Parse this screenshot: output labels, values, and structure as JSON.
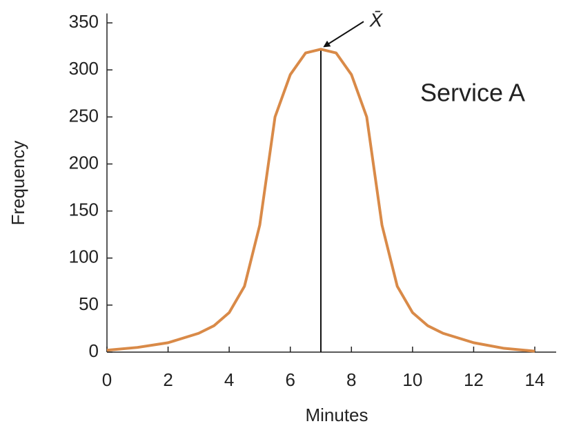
{
  "chart_data": {
    "type": "line",
    "annotation": "X̄",
    "label": "Service A",
    "x_label": "Minutes",
    "y_label": "Frequency",
    "series": [
      {
        "color": "#d98a48",
        "x": [
          0,
          1,
          2,
          3,
          3.5,
          4,
          4.5,
          5,
          5.5,
          6,
          6.5,
          7,
          7.5,
          8,
          8.5,
          9,
          9.5,
          10,
          10.5,
          11,
          12,
          13,
          14
        ],
        "values": [
          2,
          5,
          10,
          20,
          28,
          42,
          70,
          135,
          250,
          295,
          318,
          322,
          318,
          295,
          250,
          135,
          70,
          42,
          28,
          20,
          10,
          4,
          1
        ]
      }
    ],
    "xlim": [
      0,
      14.7
    ],
    "ylim": [
      0,
      360
    ],
    "xticks": [
      0,
      2,
      4,
      6,
      8,
      10,
      12,
      14
    ],
    "yticks": [
      0,
      50,
      100,
      150,
      200,
      250,
      300,
      350
    ]
  }
}
